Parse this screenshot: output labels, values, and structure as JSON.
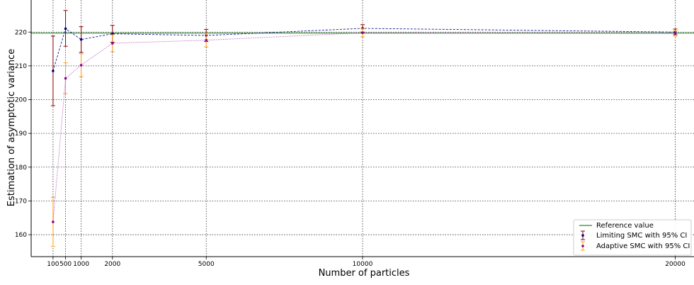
{
  "chart_data": {
    "type": "line",
    "xlabel": "Number of particles",
    "ylabel": "Estimation of asymptotic variance",
    "xlim": [
      -600,
      20600
    ],
    "ylim": [
      153.5,
      229.5
    ],
    "x_ticks": [
      100,
      500,
      1000,
      2000,
      5000,
      10000,
      20000
    ],
    "x_tick_labels": [
      "100",
      "500",
      "1000",
      "2000",
      "5000",
      "10000",
      "20000"
    ],
    "y_ticks": [
      160,
      170,
      180,
      190,
      200,
      210,
      220
    ],
    "y_tick_labels": [
      "160",
      "170",
      "180",
      "190",
      "200",
      "210",
      "220"
    ],
    "grid": true,
    "legend_position": "lower right",
    "reference": {
      "name": "Reference value",
      "value": 219.7,
      "color": "#2e8b2e"
    },
    "series": [
      {
        "name": "Limiting SMC with 95% CI",
        "line_color": "#1a1a8c",
        "marker_color": "#000080",
        "errorbar_color": "#8b0000",
        "x": [
          100,
          500,
          1000,
          2000,
          5000,
          10000,
          20000
        ],
        "values": [
          208.5,
          221.0,
          217.8,
          219.5,
          219.0,
          221.1,
          220.0
        ],
        "ci_low": [
          198.2,
          215.8,
          214.0,
          217.0,
          217.2,
          220.0,
          219.2
        ],
        "ci_high": [
          218.8,
          226.4,
          221.6,
          222.0,
          220.8,
          222.2,
          220.9
        ]
      },
      {
        "name": "Adaptive SMC with 95% CI",
        "line_color": "#b03ab0",
        "marker_color": "#8b008b",
        "errorbar_color": "#ff9f1a",
        "x": [
          100,
          500,
          1000,
          2000,
          5000,
          10000,
          20000
        ],
        "values": [
          163.8,
          206.3,
          210.2,
          216.7,
          217.6,
          219.8,
          219.6
        ],
        "ci_low": [
          156.5,
          201.8,
          206.8,
          214.2,
          215.6,
          218.6,
          218.8
        ],
        "ci_high": [
          171.1,
          210.9,
          213.6,
          219.2,
          219.6,
          221.0,
          220.4
        ]
      }
    ]
  }
}
